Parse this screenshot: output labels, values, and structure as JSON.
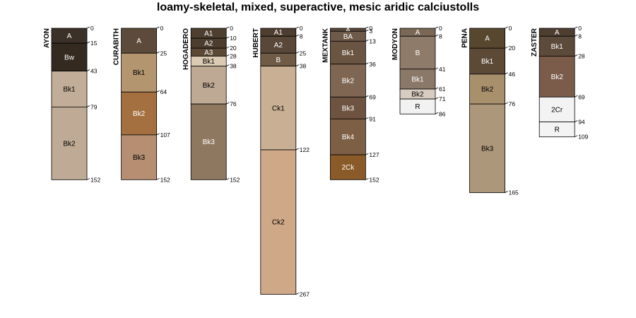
{
  "title": "loamy-skeletal, mixed, superactive, mesic aridic calciustolls",
  "profiles": [
    {
      "name": "AYON",
      "horizons": [
        {
          "name": "A",
          "top": 0,
          "bottom": 15,
          "color": "#3b3128"
        },
        {
          "name": "Bw",
          "top": 15,
          "bottom": 43,
          "color": "#342a20"
        },
        {
          "name": "Bk1",
          "top": 43,
          "bottom": 79,
          "color": "#c2ae98"
        },
        {
          "name": "Bk2",
          "top": 79,
          "bottom": 152,
          "color": "#bfab95"
        }
      ]
    },
    {
      "name": "CURABITH",
      "horizons": [
        {
          "name": "A",
          "top": 0,
          "bottom": 25,
          "color": "#5c4b3a"
        },
        {
          "name": "Bk1",
          "top": 25,
          "bottom": 64,
          "color": "#b39570"
        },
        {
          "name": "Bk2",
          "top": 64,
          "bottom": 107,
          "color": "#a57040"
        },
        {
          "name": "Bk3",
          "top": 107,
          "bottom": 152,
          "color": "#b68f73"
        }
      ]
    },
    {
      "name": "HOGADERO",
      "horizons": [
        {
          "name": "A1",
          "top": 0,
          "bottom": 10,
          "color": "#4e3f30"
        },
        {
          "name": "A2",
          "top": 10,
          "bottom": 20,
          "color": "#4c3d2e"
        },
        {
          "name": "A3",
          "top": 20,
          "bottom": 28,
          "color": "#5b4936"
        },
        {
          "name": "Bk1",
          "top": 28,
          "bottom": 38,
          "color": "#dccbb3"
        },
        {
          "name": "Bk2",
          "top": 38,
          "bottom": 76,
          "color": "#bda994"
        },
        {
          "name": "Bk3",
          "top": 76,
          "bottom": 152,
          "color": "#8f7860"
        }
      ]
    },
    {
      "name": "HUBERT",
      "horizons": [
        {
          "name": "A1",
          "top": 0,
          "bottom": 8,
          "color": "#4d3e2f"
        },
        {
          "name": "A2",
          "top": 8,
          "bottom": 25,
          "color": "#59483a"
        },
        {
          "name": "B",
          "top": 25,
          "bottom": 38,
          "color": "#6f5b46"
        },
        {
          "name": "Ck1",
          "top": 38,
          "bottom": 122,
          "color": "#c9b094"
        },
        {
          "name": "Ck2",
          "top": 122,
          "bottom": 267,
          "color": "#cfa887"
        }
      ]
    },
    {
      "name": "MEXTANK",
      "horizons": [
        {
          "name": "A",
          "top": 0,
          "bottom": 3,
          "color": "#5a4a3b"
        },
        {
          "name": "BA",
          "top": 3,
          "bottom": 13,
          "color": "#6e5a48"
        },
        {
          "name": "Bk1",
          "top": 13,
          "bottom": 36,
          "color": "#6a5542"
        },
        {
          "name": "Bk2",
          "top": 36,
          "bottom": 69,
          "color": "#7f6653"
        },
        {
          "name": "Bk3",
          "top": 69,
          "bottom": 91,
          "color": "#6e5440"
        },
        {
          "name": "Bk4",
          "top": 91,
          "bottom": 127,
          "color": "#7d5f45"
        },
        {
          "name": "2Ck",
          "top": 127,
          "bottom": 152,
          "color": "#8a5a28"
        }
      ]
    },
    {
      "name": "MODYON",
      "horizons": [
        {
          "name": "A",
          "top": 0,
          "bottom": 8,
          "color": "#7a6756"
        },
        {
          "name": "B",
          "top": 8,
          "bottom": 41,
          "color": "#8f7b69"
        },
        {
          "name": "Bk1",
          "top": 41,
          "bottom": 61,
          "color": "#8a7868"
        },
        {
          "name": "Bk2",
          "top": 61,
          "bottom": 71,
          "color": "#d8cbbf"
        },
        {
          "name": "R",
          "top": 71,
          "bottom": 86,
          "color": "#f2f2f2"
        }
      ]
    },
    {
      "name": "PENA",
      "horizons": [
        {
          "name": "A",
          "top": 0,
          "bottom": 20,
          "color": "#58472f"
        },
        {
          "name": "Bk1",
          "top": 20,
          "bottom": 46,
          "color": "#5c4a36"
        },
        {
          "name": "Bk2",
          "top": 46,
          "bottom": 76,
          "color": "#a8906d"
        },
        {
          "name": "Bk3",
          "top": 76,
          "bottom": 165,
          "color": "#ad977a"
        }
      ]
    },
    {
      "name": "ZASTER",
      "horizons": [
        {
          "name": "A",
          "top": 0,
          "bottom": 8,
          "color": "#4d3e30"
        },
        {
          "name": "Bk1",
          "top": 8,
          "bottom": 28,
          "color": "#5c4a3a"
        },
        {
          "name": "Bk2",
          "top": 28,
          "bottom": 69,
          "color": "#7b5c4b"
        },
        {
          "name": "2Cr",
          "top": 69,
          "bottom": 94,
          "color": "#f3f3f3"
        },
        {
          "name": "R",
          "top": 94,
          "bottom": 109,
          "color": "#f4f4f4"
        }
      ]
    }
  ]
}
